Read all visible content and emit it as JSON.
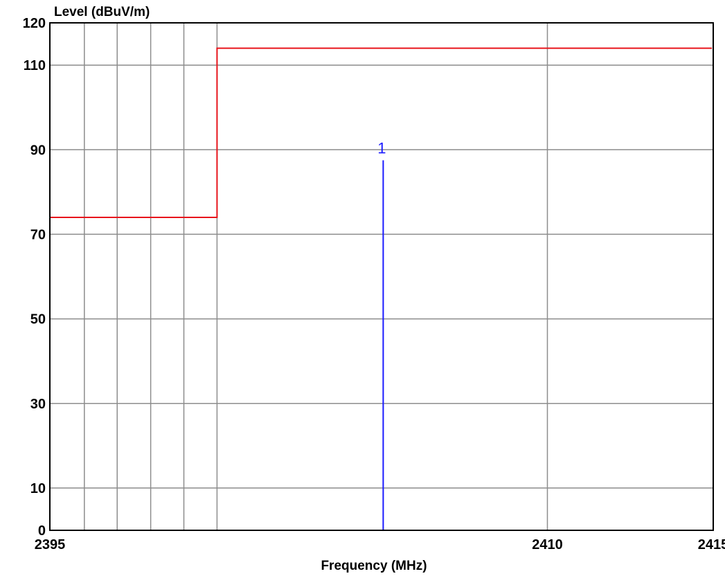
{
  "chart_data": {
    "type": "line",
    "xlabel": "Frequency (MHz)",
    "ylabel": "Level (dBuV/m)",
    "xlim": [
      2395,
      2415
    ],
    "ylim": [
      0,
      120
    ],
    "x_ticks": [
      {
        "value": 2395,
        "label": "2395"
      },
      {
        "value": 2410,
        "label": "2410"
      },
      {
        "value": 2415,
        "label": "2415"
      }
    ],
    "y_ticks": [
      {
        "value": 0,
        "label": "0"
      },
      {
        "value": 10,
        "label": "10"
      },
      {
        "value": 30,
        "label": "30"
      },
      {
        "value": 50,
        "label": "50"
      },
      {
        "value": 70,
        "label": "70"
      },
      {
        "value": 90,
        "label": "90"
      },
      {
        "value": 110,
        "label": "110"
      },
      {
        "value": 120,
        "label": "120"
      }
    ],
    "x_gridlines": [
      2395,
      2396.04,
      2397.03,
      2398.04,
      2399.04,
      2400.04,
      2410,
      2415
    ],
    "y_gridlines": [
      10,
      30,
      50,
      70,
      90,
      110
    ],
    "grid": true,
    "series": [
      {
        "color": "#e8141b",
        "style": "step",
        "points": [
          {
            "x": 2395.0,
            "y": 74.0
          },
          {
            "x": 2400.04,
            "y": 74.0
          },
          {
            "x": 2400.04,
            "y": 114.0
          },
          {
            "x": 2414.96,
            "y": 114.0
          }
        ]
      }
    ],
    "markers": [
      {
        "label": "1",
        "x": 2405.05,
        "y": 87.5,
        "color": "#1a1aff"
      }
    ]
  }
}
